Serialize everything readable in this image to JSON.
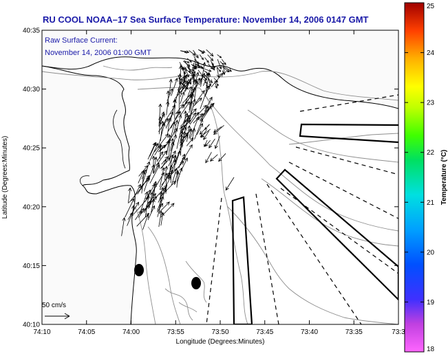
{
  "title": "RU COOL  NOAA–17  Sea Surface Temperature:  November 14, 2006 0147 GMT",
  "annotation": {
    "line1": "Raw Surface Current:",
    "line2": "November 14, 2006 01:00 GMT"
  },
  "axes": {
    "xlabel": "Longitude (Degrees:Minutes)",
    "ylabel": "Latitude (Degrees:Minutes)",
    "xticks": [
      "74:10",
      "74:05",
      "74:00",
      "73:55",
      "73:50",
      "73:45",
      "73:40",
      "73:35",
      "73:3"
    ],
    "yticks": [
      "40:35",
      "40:30",
      "40:25",
      "40:20",
      "40:15",
      "40:10"
    ]
  },
  "scale": {
    "label": "50 cm/s",
    "speed_cm_s": 50
  },
  "colorbar": {
    "label": "Temperature (°C)",
    "min": 18,
    "max": 25,
    "ticks": [
      "25",
      "24",
      "23",
      "22",
      "21",
      "20",
      "19",
      "18"
    ]
  },
  "colors": {
    "title": "#1a1aa8",
    "contour": "#8c8c8c",
    "land": "#fafafa"
  }
}
